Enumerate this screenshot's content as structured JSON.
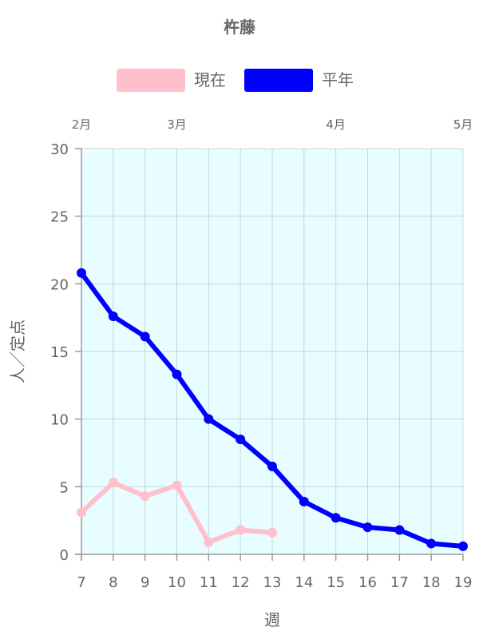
{
  "chart_data": {
    "type": "line",
    "title": "杵藤",
    "xlabel": "週",
    "ylabel": "人／定点",
    "x": [
      7,
      8,
      9,
      10,
      11,
      12,
      13,
      14,
      15,
      16,
      17,
      18,
      19
    ],
    "xlim": [
      7,
      19
    ],
    "ylim": [
      0,
      30
    ],
    "yticks": [
      0,
      5,
      10,
      15,
      20,
      25,
      30
    ],
    "grid": true,
    "legend_position": "top",
    "plot_background": "#e8fdff",
    "months": [
      {
        "label": "2月",
        "week": 7
      },
      {
        "label": "3月",
        "week": 10
      },
      {
        "label": "4月",
        "week": 15
      },
      {
        "label": "5月",
        "week": 19
      }
    ],
    "series": [
      {
        "name": "現在",
        "color": "#ffc0cb",
        "values": [
          3.1,
          5.3,
          4.3,
          5.1,
          0.9,
          1.8,
          1.6,
          null,
          null,
          null,
          null,
          null,
          null
        ]
      },
      {
        "name": "平年",
        "color": "#0000ff",
        "values": [
          20.8,
          17.6,
          16.1,
          13.3,
          10.0,
          8.5,
          6.5,
          3.9,
          2.7,
          2.0,
          1.8,
          0.8,
          0.6
        ]
      }
    ]
  }
}
